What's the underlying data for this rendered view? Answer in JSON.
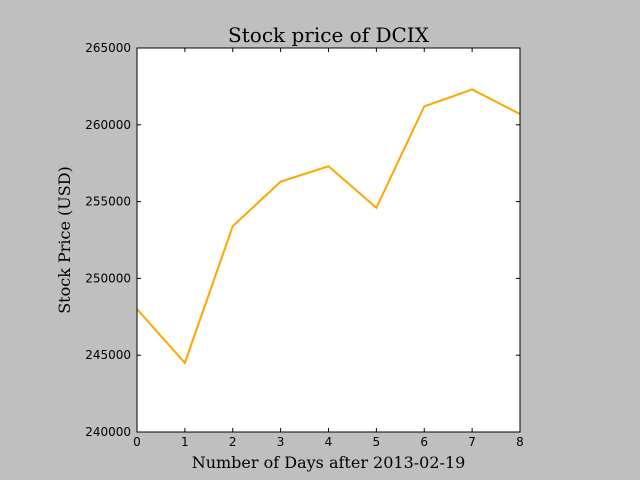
{
  "colors": {
    "background": "#bfbfbf",
    "plot_background": "#ffffff",
    "line": "#ffa500",
    "axis": "#000000"
  },
  "chart_data": {
    "type": "line",
    "title": "Stock price of DCIX",
    "xlabel": "Number of Days after 2013-02-19",
    "ylabel": "Stock Price (USD)",
    "xlim": [
      0,
      8
    ],
    "ylim": [
      240000,
      265000
    ],
    "x_ticks": [
      0,
      1,
      2,
      3,
      4,
      5,
      6,
      7,
      8
    ],
    "y_ticks": [
      240000,
      245000,
      250000,
      255000,
      260000,
      265000
    ],
    "grid": false,
    "legend": "none",
    "series": [
      {
        "color": "#ffa500",
        "x": [
          0,
          1,
          2,
          3,
          4,
          5,
          6,
          7,
          8
        ],
        "y": [
          248000,
          244500,
          253400,
          256300,
          257300,
          254600,
          261200,
          262300,
          260700
        ]
      }
    ]
  }
}
